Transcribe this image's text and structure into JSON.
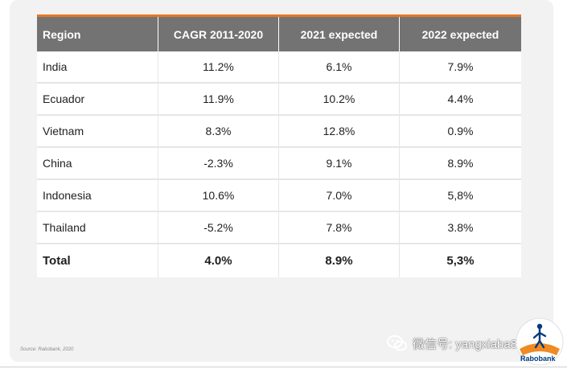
{
  "table": {
    "headers": [
      "Region",
      "CAGR 2011-2020",
      "2021 expected",
      "2022 expected"
    ],
    "rows": [
      [
        "India",
        "11.2%",
        "6.1%",
        "7.9%"
      ],
      [
        "Ecuador",
        "11.9%",
        "10.2%",
        "4.4%"
      ],
      [
        "Vietnam",
        "8.3%",
        "12.8%",
        "0.9%"
      ],
      [
        "China",
        "-2.3%",
        "9.1%",
        "8.9%"
      ],
      [
        "Indonesia",
        "10.6%",
        "7.0%",
        "5,8%"
      ],
      [
        "Thailand",
        "-5.2%",
        "7.8%",
        "3.8%"
      ]
    ],
    "total": [
      "Total",
      "4.0%",
      "8.9%",
      "5,3%"
    ]
  },
  "source": "Source: Rabobank, 2020",
  "logo_text": "Rabobank",
  "watermark": "微信号: yangxiaba888",
  "colors": {
    "header_bg": "#737373",
    "accent": "#e87722",
    "logo_blue": "#003a7d",
    "logo_orange": "#f08a24"
  }
}
